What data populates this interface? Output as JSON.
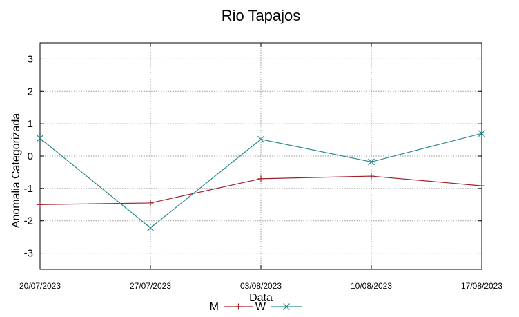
{
  "chart_data": {
    "type": "line",
    "title": "Rio Tapajos",
    "xlabel": "Data",
    "ylabel": "Anomalia Categorizada",
    "categories": [
      "20/07/2023",
      "27/07/2023",
      "03/08/2023",
      "10/08/2023",
      "17/08/2023"
    ],
    "yticks": [
      "3",
      "2",
      "1",
      "0",
      "-1",
      "-2",
      "-3"
    ],
    "ylim": [
      -3.5,
      3.5
    ],
    "grid": true,
    "legend_position": "bottom",
    "series": [
      {
        "name": "M",
        "marker": "+",
        "color": "#a0202a",
        "values": [
          -1.5,
          -1.45,
          -0.7,
          -0.62,
          -0.92
        ]
      },
      {
        "name": "W",
        "marker": "x",
        "color": "#2a8a8e",
        "values": [
          0.55,
          -2.22,
          0.52,
          -0.18,
          0.7
        ]
      }
    ]
  }
}
